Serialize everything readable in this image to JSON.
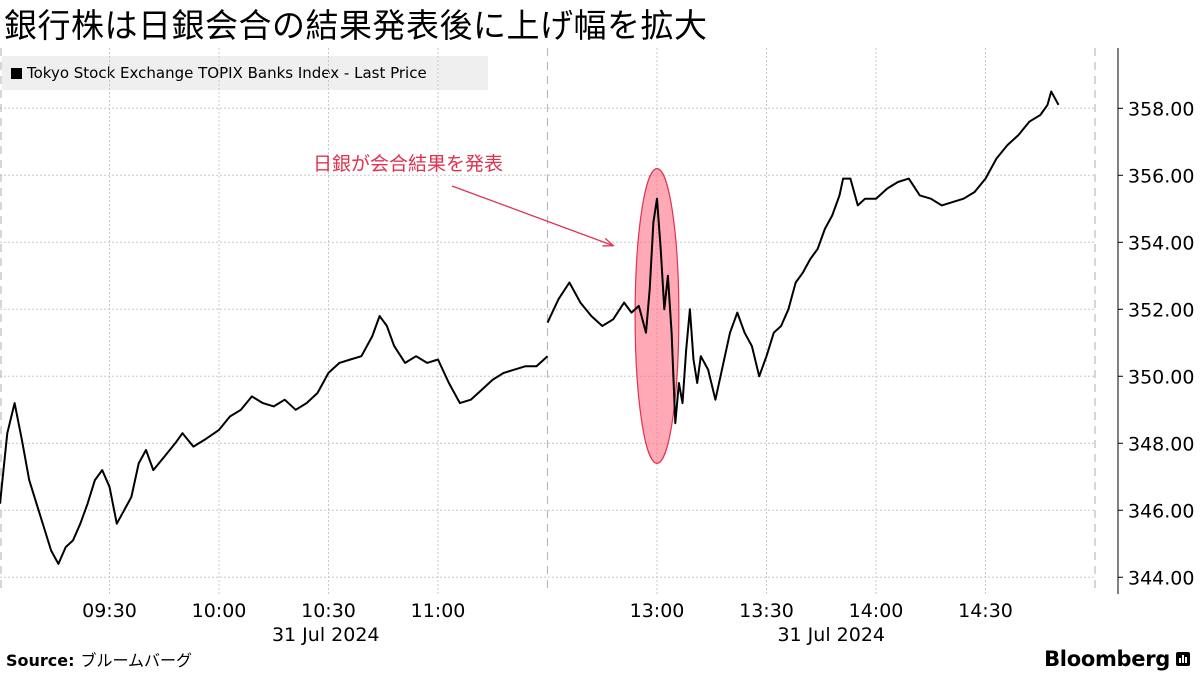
{
  "title": "銀行株は日銀会合の結果発表後に上げ幅を拡大",
  "legend": "Tokyo Stock Exchange TOPIX Banks Index - Last Price",
  "source_label": "Source:",
  "source_value": "ブルームバーグ",
  "brand": "Bloomberg",
  "colors": {
    "line": "#000000",
    "highlight_fill": "#ff6f86",
    "highlight_stroke": "#e0334f",
    "annotation": "#e0334f",
    "grid": "#c8c8c8"
  },
  "chart_data": {
    "type": "line",
    "title": "銀行株は日銀会合の結果発表後に上げ幅を拡大",
    "series": [
      {
        "name": "Tokyo Stock Exchange TOPIX Banks Index - Last Price",
        "points": [
          [
            "09:00",
            346.2
          ],
          [
            "09:02",
            348.3
          ],
          [
            "09:04",
            349.2
          ],
          [
            "09:06",
            348.1
          ],
          [
            "09:08",
            346.9
          ],
          [
            "09:10",
            346.2
          ],
          [
            "09:12",
            345.5
          ],
          [
            "09:14",
            344.8
          ],
          [
            "09:16",
            344.4
          ],
          [
            "09:18",
            344.9
          ],
          [
            "09:20",
            345.1
          ],
          [
            "09:22",
            345.6
          ],
          [
            "09:24",
            346.2
          ],
          [
            "09:26",
            346.9
          ],
          [
            "09:28",
            347.2
          ],
          [
            "09:30",
            346.7
          ],
          [
            "09:32",
            345.6
          ],
          [
            "09:34",
            346.0
          ],
          [
            "09:36",
            346.4
          ],
          [
            "09:38",
            347.4
          ],
          [
            "09:40",
            347.8
          ],
          [
            "09:42",
            347.2
          ],
          [
            "09:45",
            347.6
          ],
          [
            "09:48",
            348.0
          ],
          [
            "09:50",
            348.3
          ],
          [
            "09:53",
            347.9
          ],
          [
            "09:56",
            348.1
          ],
          [
            "10:00",
            348.4
          ],
          [
            "10:03",
            348.8
          ],
          [
            "10:06",
            349.0
          ],
          [
            "10:09",
            349.4
          ],
          [
            "10:12",
            349.2
          ],
          [
            "10:15",
            349.1
          ],
          [
            "10:18",
            349.3
          ],
          [
            "10:21",
            349.0
          ],
          [
            "10:24",
            349.2
          ],
          [
            "10:27",
            349.5
          ],
          [
            "10:30",
            350.1
          ],
          [
            "10:33",
            350.4
          ],
          [
            "10:36",
            350.5
          ],
          [
            "10:39",
            350.6
          ],
          [
            "10:42",
            351.2
          ],
          [
            "10:44",
            351.8
          ],
          [
            "10:46",
            351.5
          ],
          [
            "10:48",
            350.9
          ],
          [
            "10:51",
            350.4
          ],
          [
            "10:54",
            350.6
          ],
          [
            "10:57",
            350.4
          ],
          [
            "11:00",
            350.5
          ],
          [
            "11:03",
            349.8
          ],
          [
            "11:06",
            349.2
          ],
          [
            "11:09",
            349.3
          ],
          [
            "11:12",
            349.6
          ],
          [
            "11:15",
            349.9
          ],
          [
            "11:18",
            350.1
          ],
          [
            "11:21",
            350.2
          ],
          [
            "11:24",
            350.3
          ],
          [
            "11:27",
            350.3
          ],
          [
            "11:30",
            350.6
          ],
          [
            "12:30",
            351.6
          ],
          [
            "12:33",
            352.3
          ],
          [
            "12:36",
            352.8
          ],
          [
            "12:39",
            352.2
          ],
          [
            "12:42",
            351.8
          ],
          [
            "12:45",
            351.5
          ],
          [
            "12:48",
            351.7
          ],
          [
            "12:51",
            352.2
          ],
          [
            "12:53",
            351.9
          ],
          [
            "12:55",
            352.1
          ],
          [
            "12:57",
            351.3
          ],
          [
            "12:58",
            352.6
          ],
          [
            "12:59",
            354.6
          ],
          [
            "13:00",
            355.3
          ],
          [
            "13:01",
            353.8
          ],
          [
            "13:02",
            352.0
          ],
          [
            "13:03",
            353.0
          ],
          [
            "13:04",
            351.3
          ],
          [
            "13:05",
            348.6
          ],
          [
            "13:06",
            349.8
          ],
          [
            "13:07",
            349.2
          ],
          [
            "13:08",
            350.8
          ],
          [
            "13:09",
            352.0
          ],
          [
            "13:10",
            350.5
          ],
          [
            "13:11",
            349.8
          ],
          [
            "13:12",
            350.6
          ],
          [
            "13:14",
            350.2
          ],
          [
            "13:16",
            349.3
          ],
          [
            "13:18",
            350.3
          ],
          [
            "13:20",
            351.3
          ],
          [
            "13:22",
            351.9
          ],
          [
            "13:24",
            351.3
          ],
          [
            "13:26",
            350.9
          ],
          [
            "13:28",
            350.0
          ],
          [
            "13:30",
            350.6
          ],
          [
            "13:32",
            351.3
          ],
          [
            "13:34",
            351.5
          ],
          [
            "13:36",
            352.0
          ],
          [
            "13:38",
            352.8
          ],
          [
            "13:40",
            353.1
          ],
          [
            "13:42",
            353.5
          ],
          [
            "13:44",
            353.8
          ],
          [
            "13:46",
            354.4
          ],
          [
            "13:48",
            354.8
          ],
          [
            "13:50",
            355.4
          ],
          [
            "13:51",
            355.9
          ],
          [
            "13:53",
            355.9
          ],
          [
            "13:55",
            355.1
          ],
          [
            "13:57",
            355.3
          ],
          [
            "14:00",
            355.3
          ],
          [
            "14:03",
            355.6
          ],
          [
            "14:06",
            355.8
          ],
          [
            "14:09",
            355.9
          ],
          [
            "14:12",
            355.4
          ],
          [
            "14:15",
            355.3
          ],
          [
            "14:18",
            355.1
          ],
          [
            "14:21",
            355.2
          ],
          [
            "14:24",
            355.3
          ],
          [
            "14:27",
            355.5
          ],
          [
            "14:30",
            355.9
          ],
          [
            "14:33",
            356.5
          ],
          [
            "14:36",
            356.9
          ],
          [
            "14:39",
            357.2
          ],
          [
            "14:42",
            357.6
          ],
          [
            "14:45",
            357.8
          ],
          [
            "14:47",
            358.1
          ],
          [
            "14:48",
            358.5
          ],
          [
            "14:49",
            358.3
          ],
          [
            "14:50",
            358.1
          ]
        ]
      }
    ],
    "x_ticks": [
      {
        "time": "09:30",
        "label": "09:30"
      },
      {
        "time": "10:00",
        "label": "10:00"
      },
      {
        "time": "10:30",
        "label": "10:30"
      },
      {
        "time": "11:00",
        "label": "11:00"
      },
      {
        "time": "13:00",
        "label": "13:00"
      },
      {
        "time": "13:30",
        "label": "13:30"
      },
      {
        "time": "14:00",
        "label": "14:00"
      },
      {
        "time": "14:30",
        "label": "14:30"
      }
    ],
    "date_labels": [
      {
        "session": "morning",
        "label": "31 Jul 2024"
      },
      {
        "session": "afternoon",
        "label": "31 Jul 2024"
      }
    ],
    "y_ticks": [
      "344.00",
      "346.00",
      "348.00",
      "350.00",
      "352.00",
      "354.00",
      "356.00",
      "358.00"
    ],
    "ylim": [
      343.5,
      359.8
    ],
    "sessions": [
      [
        "09:00",
        "11:30"
      ],
      [
        "12:30",
        "15:00"
      ]
    ],
    "session_break": "11:30",
    "yaxis_position": "right",
    "grid": true,
    "legend_position": "top-left",
    "annotation": {
      "text": "日銀が会合結果を発表",
      "arrow_to": [
        "12:48",
        353.9
      ],
      "highlight_center": [
        "13:00",
        351.8
      ],
      "highlight_range": {
        "time": [
          "12:54",
          "13:06"
        ],
        "value": [
          347.4,
          356.2
        ]
      }
    }
  }
}
